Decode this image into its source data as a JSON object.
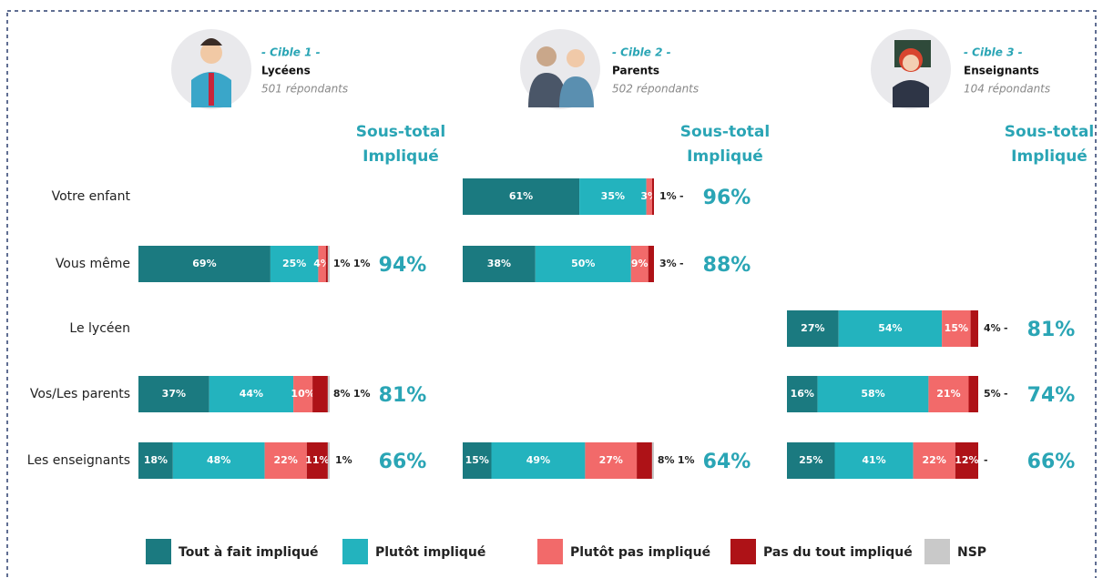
{
  "row_labels": [
    "Votre enfant",
    "Vous même",
    "Le lycéen",
    "Vos/Les parents",
    "Les enseignants"
  ],
  "subtotal_title": [
    "Sous-total",
    "Impliqué"
  ],
  "legend": [
    {
      "name": "Tout à fait impliqué",
      "color": "#1b7a80"
    },
    {
      "name": "Plutôt impliqué",
      "color": "#23b3be"
    },
    {
      "name": "Plutôt pas impliqué",
      "color": "#f26a6a"
    },
    {
      "name": "Pas du tout impliqué",
      "color": "#ae1217"
    },
    {
      "name": "NSP",
      "color": "#c9c9c9"
    }
  ],
  "chart_data": [
    {
      "type": "bar",
      "orientation": "horizontal",
      "stacked": true,
      "cible": "- Cible 1 -",
      "title": "Lycéens",
      "subtitle": "501 répondants",
      "series": [
        {
          "values": [
            null,
            69,
            null,
            37,
            18
          ],
          "value_labels": [
            null,
            "69%",
            null,
            "37%",
            "18%"
          ]
        },
        {
          "values": [
            null,
            25,
            null,
            44,
            48
          ],
          "value_labels": [
            null,
            "25%",
            null,
            "44%",
            "48%"
          ]
        },
        {
          "values": [
            null,
            4,
            null,
            10,
            22
          ],
          "value_labels": [
            null,
            "4%",
            null,
            "10%",
            "22%"
          ]
        },
        {
          "values": [
            null,
            1,
            null,
            8,
            11
          ],
          "value_labels": [
            null,
            "1%",
            null,
            "8%",
            "11%"
          ]
        },
        {
          "values": [
            null,
            1,
            null,
            1,
            1
          ],
          "value_labels": [
            null,
            "1%",
            null,
            "1%",
            "1%"
          ]
        }
      ],
      "subtotals": [
        null,
        "94%",
        null,
        "81%",
        "66%"
      ]
    },
    {
      "type": "bar",
      "orientation": "horizontal",
      "stacked": true,
      "cible": "- Cible 2 -",
      "title": "Parents",
      "subtitle": "502 répondants",
      "series": [
        {
          "values": [
            61,
            38,
            null,
            null,
            15
          ],
          "value_labels": [
            "61%",
            "38%",
            null,
            null,
            "15%"
          ]
        },
        {
          "values": [
            35,
            50,
            null,
            null,
            49
          ],
          "value_labels": [
            "35%",
            "50%",
            null,
            null,
            "49%"
          ]
        },
        {
          "values": [
            3,
            9,
            null,
            null,
            27
          ],
          "value_labels": [
            "3%",
            "9%",
            null,
            null,
            "27%"
          ]
        },
        {
          "values": [
            1,
            3,
            null,
            null,
            8
          ],
          "value_labels": [
            "1%",
            "3%",
            null,
            null,
            "8%"
          ]
        },
        {
          "values": [
            null,
            null,
            null,
            null,
            1
          ],
          "value_labels": [
            "-",
            "-",
            null,
            null,
            "1%"
          ]
        }
      ],
      "subtotals": [
        "96%",
        "88%",
        null,
        null,
        "64%"
      ]
    },
    {
      "type": "bar",
      "orientation": "horizontal",
      "stacked": true,
      "cible": "- Cible 3 -",
      "title": "Enseignants",
      "subtitle": "104 répondants",
      "series": [
        {
          "values": [
            null,
            null,
            27,
            16,
            25
          ],
          "value_labels": [
            null,
            null,
            "27%",
            "16%",
            "25%"
          ]
        },
        {
          "values": [
            null,
            null,
            54,
            58,
            41
          ],
          "value_labels": [
            null,
            null,
            "54%",
            "58%",
            "41%"
          ]
        },
        {
          "values": [
            null,
            null,
            15,
            21,
            22
          ],
          "value_labels": [
            null,
            null,
            "15%",
            "21%",
            "22%"
          ]
        },
        {
          "values": [
            null,
            null,
            4,
            5,
            12
          ],
          "value_labels": [
            null,
            null,
            "4%",
            "5%",
            "12%"
          ]
        },
        {
          "values": [
            null,
            null,
            null,
            null,
            null
          ],
          "value_labels": [
            null,
            null,
            "-",
            "-",
            "-"
          ]
        }
      ],
      "subtotals": [
        null,
        null,
        "81%",
        "74%",
        "66%"
      ]
    }
  ]
}
